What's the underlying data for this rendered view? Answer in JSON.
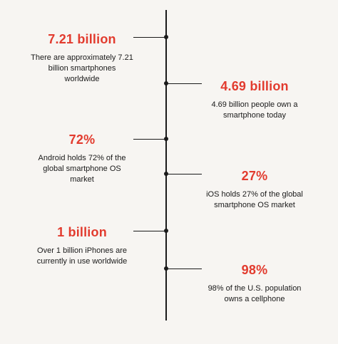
{
  "accent_color": "#e23b2e",
  "facts": [
    {
      "value": "7.21 billion",
      "desc_lines": [
        "There are approximately 7.21",
        "billion smartphones",
        "worldwide"
      ]
    },
    {
      "value": "4.69 billion",
      "desc_lines": [
        "4.69 billion people own a",
        "smartphone today"
      ]
    },
    {
      "value": "72%",
      "desc_lines": [
        "Android holds 72% of the",
        "global smartphone OS",
        "market"
      ]
    },
    {
      "value": "27%",
      "desc_lines": [
        "iOS holds 27% of the global",
        "smartphone OS market"
      ]
    },
    {
      "value": "1 billion",
      "desc_lines": [
        "Over 1 billion iPhones are",
        "currently in use worldwide"
      ]
    },
    {
      "value": "98%",
      "desc_lines": [
        "98% of the U.S. population",
        "owns a cellphone"
      ]
    }
  ]
}
